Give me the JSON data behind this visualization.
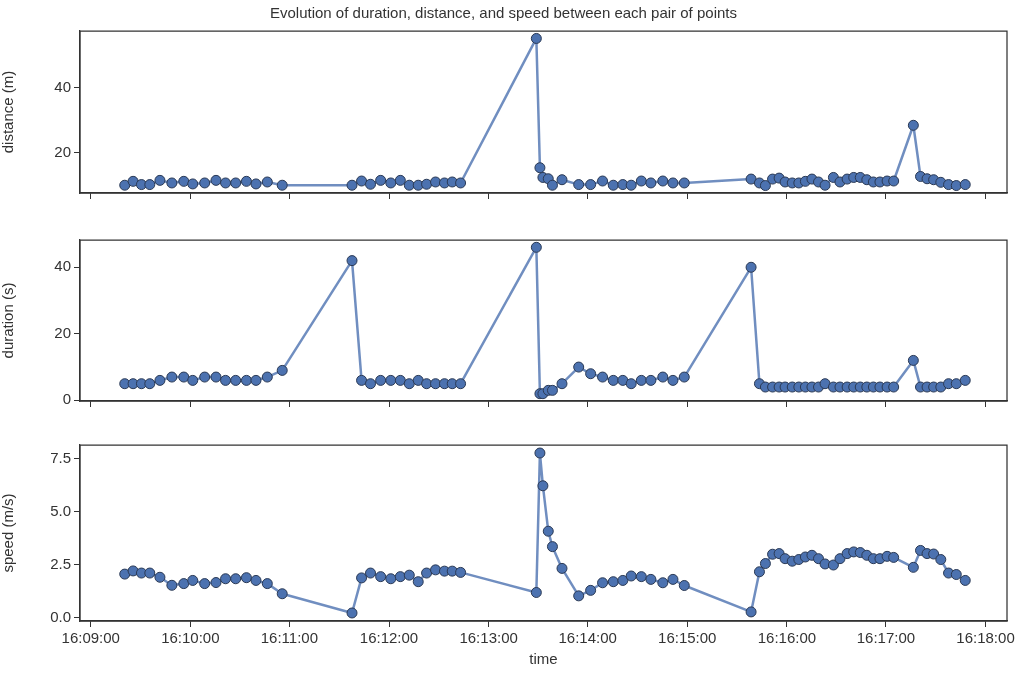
{
  "chart_data": [
    {
      "type": "line",
      "title": "Evolution of duration, distance, and speed between each pair of points",
      "ylabel": "distance (m)",
      "x": [
        16.1557,
        16.1571,
        16.1585,
        16.1599,
        16.1616,
        16.1636,
        16.1656,
        16.1671,
        16.1691,
        16.171,
        16.1726,
        16.1743,
        16.1761,
        16.1777,
        16.1796,
        16.1821,
        16.1938,
        16.1954,
        16.1969,
        16.1986,
        16.2003,
        16.2019,
        16.2034,
        16.2049,
        16.2063,
        16.2078,
        16.2093,
        16.2106,
        16.212,
        16.2247,
        16.2253,
        16.2258,
        16.2267,
        16.2274,
        16.229,
        16.2318,
        16.2338,
        16.2358,
        16.2376,
        16.2392,
        16.2406,
        16.2423,
        16.2439,
        16.2459,
        16.2476,
        16.2495,
        16.2607,
        16.2621,
        16.2631,
        16.2643,
        16.2654,
        16.2664,
        16.2676,
        16.2687,
        16.2698,
        16.2709,
        16.272,
        16.2731,
        16.2745,
        16.2756,
        16.2768,
        16.2779,
        16.279,
        16.2801,
        16.2812,
        16.2823,
        16.2835,
        16.2846,
        16.2879,
        16.2891,
        16.2902,
        16.2913,
        16.2925,
        16.2938,
        16.2951,
        16.2966
      ],
      "series": [
        {
          "color": "#4c72b0",
          "values": [
            9.9,
            11.1,
            10.1,
            10.1,
            11.4,
            10.6,
            11.1,
            10.3,
            10.6,
            11.4,
            10.6,
            10.6,
            11.1,
            10.3,
            10.9,
            9.9,
            9.9,
            11.2,
            10.2,
            11.4,
            10.6,
            11.4,
            9.9,
            9.9,
            10.2,
            10.9,
            10.6,
            10.9,
            10.6,
            55.2,
            15.3,
            12.3,
            11.9,
            9.9,
            11.6,
            10.1,
            10.1,
            11.2,
            9.9,
            10.1,
            9.9,
            11.2,
            10.6,
            11.2,
            10.6,
            10.6,
            11.8,
            10.6,
            9.8,
            11.8,
            12.1,
            10.9,
            10.6,
            10.6,
            11.1,
            11.8,
            10.9,
            9.9,
            12.3,
            10.9,
            11.8,
            12.3,
            12.3,
            11.6,
            10.9,
            10.9,
            11.2,
            11.2,
            28.4,
            12.6,
            11.9,
            11.6,
            10.8,
            10.1,
            9.8,
            10.1
          ]
        }
      ],
      "xlim": [
        16.1482,
        16.3036
      ],
      "xticks": [
        {
          "value": 16.15,
          "label": null
        },
        {
          "value": 16.1667,
          "label": null
        },
        {
          "value": 16.1833,
          "label": null
        },
        {
          "value": 16.2,
          "label": null
        },
        {
          "value": 16.2167,
          "label": null
        },
        {
          "value": 16.2333,
          "label": null
        },
        {
          "value": 16.25,
          "label": null
        },
        {
          "value": 16.2667,
          "label": null
        },
        {
          "value": 16.2833,
          "label": null
        },
        {
          "value": 16.3,
          "label": null
        }
      ],
      "ylim": [
        7.5,
        57.5
      ],
      "yticks": [
        20,
        40
      ],
      "tick_labels": "y",
      "marker": "circle",
      "grid": false,
      "legend": false
    },
    {
      "type": "line",
      "ylabel": "duration (s)",
      "x": [
        16.1557,
        16.1571,
        16.1585,
        16.1599,
        16.1616,
        16.1636,
        16.1656,
        16.1671,
        16.1691,
        16.171,
        16.1726,
        16.1743,
        16.1761,
        16.1777,
        16.1796,
        16.1821,
        16.1938,
        16.1954,
        16.1969,
        16.1986,
        16.2003,
        16.2019,
        16.2034,
        16.2049,
        16.2063,
        16.2078,
        16.2093,
        16.2106,
        16.212,
        16.2247,
        16.2253,
        16.2258,
        16.2267,
        16.2274,
        16.229,
        16.2318,
        16.2338,
        16.2358,
        16.2376,
        16.2392,
        16.2406,
        16.2423,
        16.2439,
        16.2459,
        16.2476,
        16.2495,
        16.2607,
        16.2621,
        16.2631,
        16.2643,
        16.2654,
        16.2664,
        16.2676,
        16.2687,
        16.2698,
        16.2709,
        16.272,
        16.2731,
        16.2745,
        16.2756,
        16.2768,
        16.2779,
        16.279,
        16.2801,
        16.2812,
        16.2823,
        16.2835,
        16.2846,
        16.2879,
        16.2891,
        16.2902,
        16.2913,
        16.2925,
        16.2938,
        16.2951,
        16.2966
      ],
      "series": [
        {
          "color": "#4c72b0",
          "values": [
            5,
            5,
            5,
            5,
            6,
            7,
            7,
            6,
            7,
            7,
            6,
            6,
            6,
            6,
            7,
            9,
            42,
            6,
            5,
            6,
            6,
            6,
            5,
            6,
            5,
            5,
            5,
            5,
            5,
            46,
            2,
            2,
            3,
            3,
            5,
            10,
            8,
            7,
            6,
            6,
            5,
            6,
            6,
            7,
            6,
            7,
            40,
            5,
            4,
            4,
            4,
            4,
            4,
            4,
            4,
            4,
            4,
            5,
            4,
            4,
            4,
            4,
            4,
            4,
            4,
            4,
            4,
            4,
            12,
            4,
            4,
            4,
            4,
            5,
            5,
            6
          ]
        }
      ],
      "xlim": [
        16.1482,
        16.3036
      ],
      "xticks": [
        {
          "value": 16.15,
          "label": null
        },
        {
          "value": 16.1667,
          "label": null
        },
        {
          "value": 16.1833,
          "label": null
        },
        {
          "value": 16.2,
          "label": null
        },
        {
          "value": 16.2167,
          "label": null
        },
        {
          "value": 16.2333,
          "label": null
        },
        {
          "value": 16.25,
          "label": null
        },
        {
          "value": 16.2667,
          "label": null
        },
        {
          "value": 16.2833,
          "label": null
        },
        {
          "value": 16.3,
          "label": null
        }
      ],
      "ylim": [
        -0.2,
        48.2
      ],
      "yticks": [
        0,
        20,
        40
      ],
      "tick_labels": "y",
      "marker": "circle",
      "grid": false,
      "legend": false
    },
    {
      "type": "line",
      "ylabel": "speed (m/s)",
      "xlabel": "time",
      "x": [
        16.1557,
        16.1571,
        16.1585,
        16.1599,
        16.1616,
        16.1636,
        16.1656,
        16.1671,
        16.1691,
        16.171,
        16.1726,
        16.1743,
        16.1761,
        16.1777,
        16.1796,
        16.1821,
        16.1938,
        16.1954,
        16.1969,
        16.1986,
        16.2003,
        16.2019,
        16.2034,
        16.2049,
        16.2063,
        16.2078,
        16.2093,
        16.2106,
        16.212,
        16.2247,
        16.2253,
        16.2258,
        16.2267,
        16.2274,
        16.229,
        16.2318,
        16.2338,
        16.2358,
        16.2376,
        16.2392,
        16.2406,
        16.2423,
        16.2439,
        16.2459,
        16.2476,
        16.2495,
        16.2607,
        16.2621,
        16.2631,
        16.2643,
        16.2654,
        16.2664,
        16.2676,
        16.2687,
        16.2698,
        16.2709,
        16.272,
        16.2731,
        16.2745,
        16.2756,
        16.2768,
        16.2779,
        16.279,
        16.2801,
        16.2812,
        16.2823,
        16.2835,
        16.2846,
        16.2879,
        16.2891,
        16.2902,
        16.2913,
        16.2925,
        16.2938,
        16.2951,
        16.2966
      ],
      "series": [
        {
          "color": "#4c72b0",
          "values": [
            2.05,
            2.2,
            2.1,
            2.1,
            1.9,
            1.52,
            1.6,
            1.75,
            1.6,
            1.65,
            1.83,
            1.83,
            1.88,
            1.75,
            1.6,
            1.12,
            0.21,
            1.87,
            2.1,
            1.93,
            1.83,
            1.93,
            2.0,
            1.69,
            2.1,
            2.25,
            2.19,
            2.19,
            2.13,
            1.18,
            7.78,
            6.23,
            4.08,
            3.35,
            2.32,
            1.02,
            1.28,
            1.64,
            1.69,
            1.75,
            1.96,
            1.93,
            1.8,
            1.64,
            1.8,
            1.51,
            0.26,
            2.16,
            2.55,
            2.99,
            3.02,
            2.78,
            2.66,
            2.74,
            2.86,
            2.94,
            2.78,
            2.53,
            2.48,
            2.78,
            3.02,
            3.1,
            3.07,
            2.94,
            2.78,
            2.78,
            2.89,
            2.84,
            2.37,
            3.17,
            3.02,
            3.0,
            2.74,
            2.1,
            2.03,
            1.75
          ]
        }
      ],
      "xlim": [
        16.1482,
        16.3036
      ],
      "xticks": [
        {
          "value": 16.15,
          "label": "16:09:00"
        },
        {
          "value": 16.1667,
          "label": "16:10:00"
        },
        {
          "value": 16.1833,
          "label": "16:11:00"
        },
        {
          "value": 16.2,
          "label": "16:12:00"
        },
        {
          "value": 16.2167,
          "label": "16:13:00"
        },
        {
          "value": 16.2333,
          "label": "16:14:00"
        },
        {
          "value": 16.25,
          "label": "16:15:00"
        },
        {
          "value": 16.2667,
          "label": "16:16:00"
        },
        {
          "value": 16.2833,
          "label": "16:17:00"
        },
        {
          "value": 16.3,
          "label": "16:18:00"
        }
      ],
      "ylim": [
        -0.17,
        8.16
      ],
      "yticks": [
        {
          "value": 0,
          "label": "0.0"
        },
        {
          "value": 2.5,
          "label": "2.5"
        },
        {
          "value": 5,
          "label": "5.0"
        },
        {
          "value": 7.5,
          "label": "7.5"
        }
      ],
      "marker": "circle",
      "grid": false,
      "legend": false
    }
  ]
}
